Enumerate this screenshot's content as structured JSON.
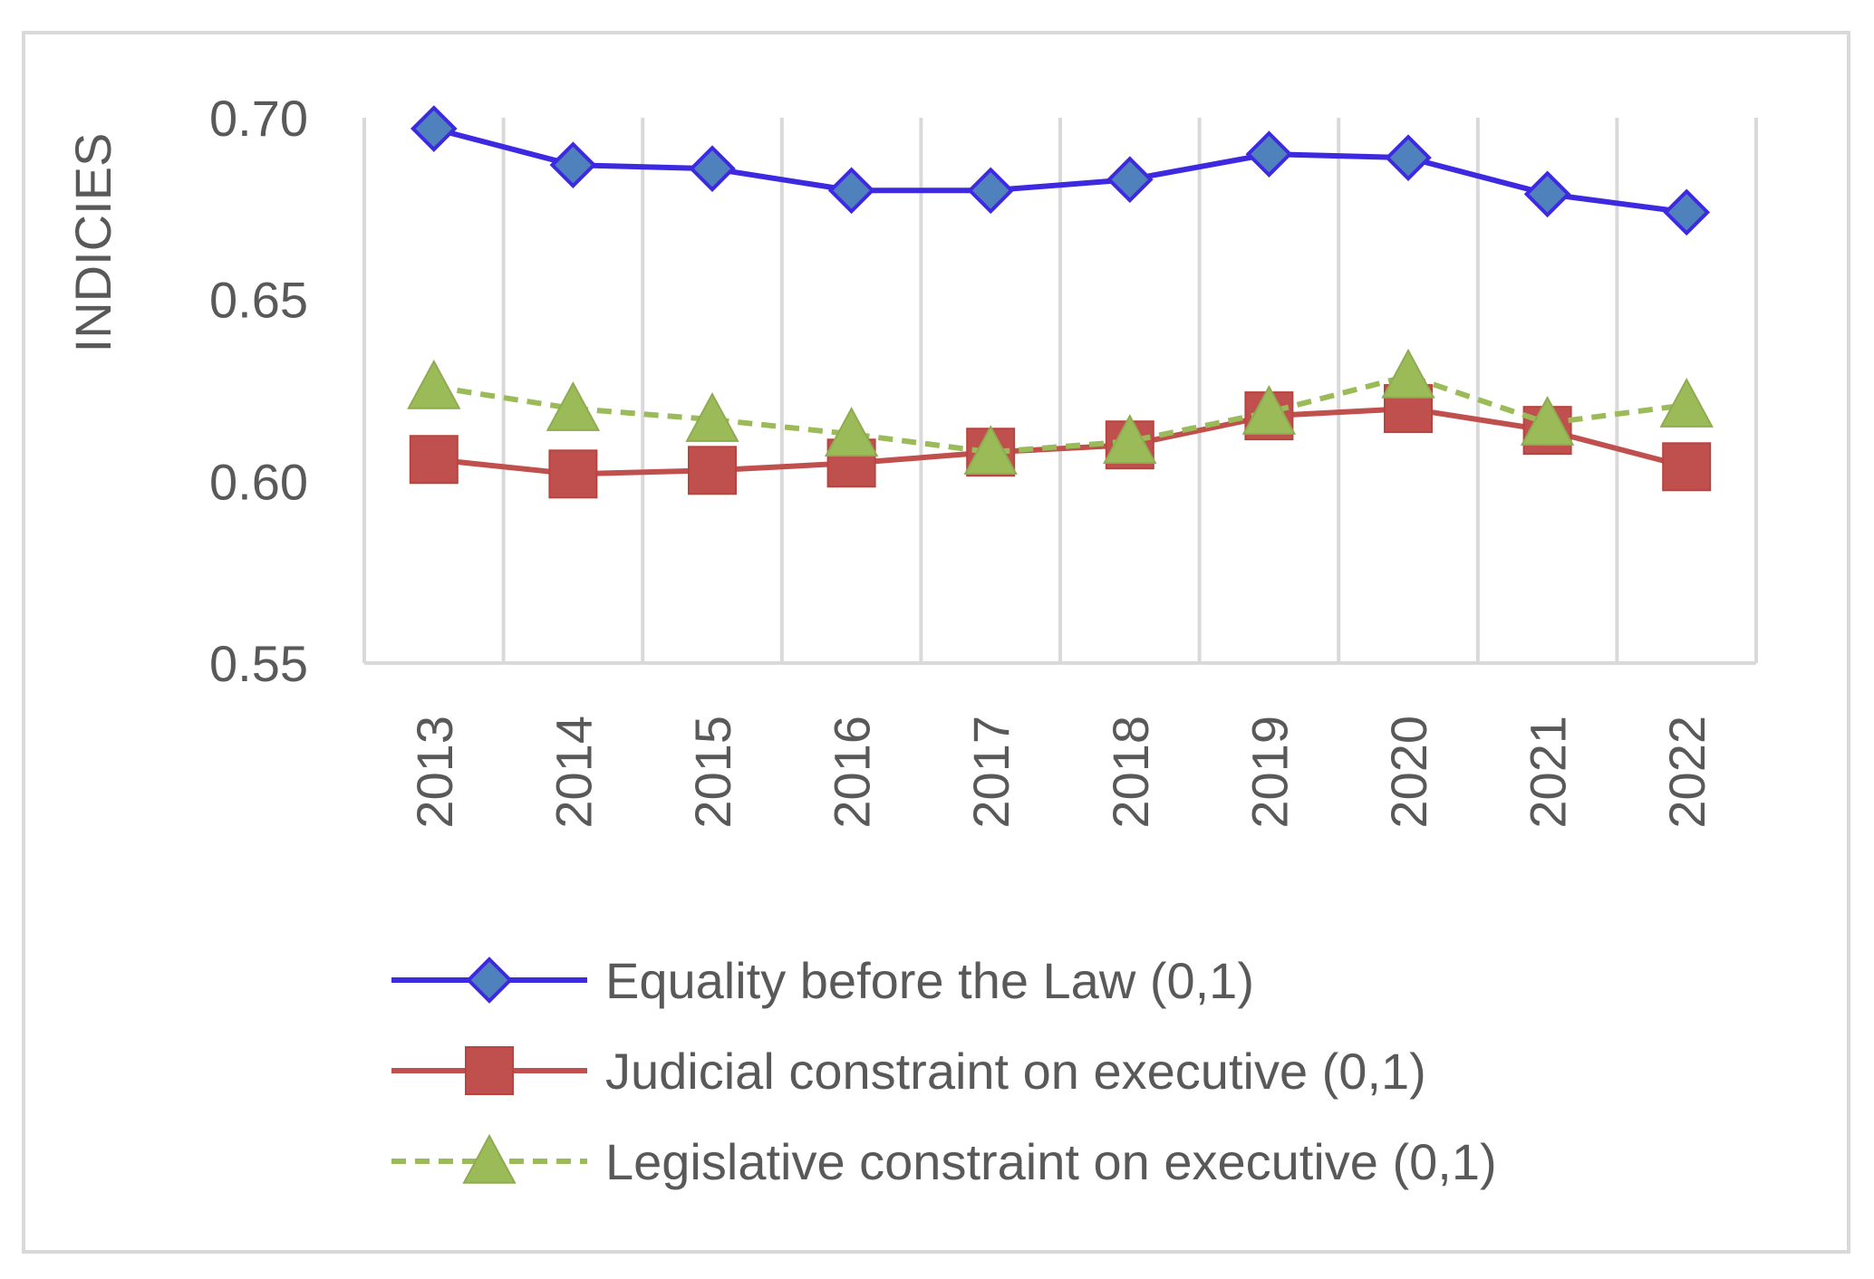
{
  "chart_data": {
    "type": "line",
    "title": "",
    "xlabel": "",
    "ylabel": "INDICIES",
    "ylim": [
      0.55,
      0.7
    ],
    "yticks": [
      "0.70",
      "0.65",
      "0.60",
      "0.55"
    ],
    "grid": "vertical",
    "legend_position": "bottom",
    "categories": [
      "2013",
      "2014",
      "2015",
      "2016",
      "2017",
      "2018",
      "2019",
      "2020",
      "2021",
      "2022"
    ],
    "series": [
      {
        "name": "Equality before the Law (0,1)",
        "color": "#3d29e0",
        "marker": "diamond",
        "marker_color": "#4f81bd",
        "line_style": "solid",
        "values": [
          0.697,
          0.687,
          0.686,
          0.68,
          0.68,
          0.683,
          0.69,
          0.689,
          0.679,
          0.674
        ]
      },
      {
        "name": "Judicial constraint on executive  (0,1)",
        "color": "#c0504d",
        "marker": "square",
        "marker_color": "#c0504d",
        "line_style": "solid",
        "values": [
          0.606,
          0.602,
          0.603,
          0.605,
          0.608,
          0.61,
          0.618,
          0.62,
          0.614,
          0.604
        ]
      },
      {
        "name": "Legislative constraint  on executive (0,1)",
        "color": "#9bbb59",
        "marker": "triangle",
        "marker_color": "#9bbb59",
        "line_style": "dashed",
        "values": [
          0.626,
          0.62,
          0.617,
          0.613,
          0.608,
          0.611,
          0.619,
          0.629,
          0.616,
          0.621
        ]
      }
    ]
  }
}
